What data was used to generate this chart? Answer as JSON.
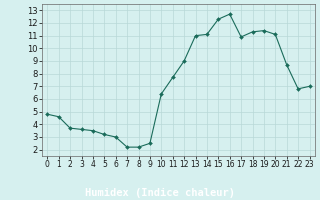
{
  "x": [
    0,
    1,
    2,
    3,
    4,
    5,
    6,
    7,
    8,
    9,
    10,
    11,
    12,
    13,
    14,
    15,
    16,
    17,
    18,
    19,
    20,
    21,
    22,
    23
  ],
  "y": [
    4.8,
    4.6,
    3.7,
    3.6,
    3.5,
    3.2,
    3.0,
    2.2,
    2.2,
    2.5,
    6.4,
    7.7,
    9.0,
    11.0,
    11.1,
    12.3,
    12.7,
    10.9,
    11.3,
    11.4,
    11.1,
    8.7,
    6.8,
    7.0
  ],
  "line_color": "#1a6b5a",
  "marker": "D",
  "marker_size": 2.0,
  "bg_color": "#d6f0ef",
  "grid_color": "#b8d8d8",
  "bottom_bar_color": "#2e8b7a",
  "xlabel": "Humidex (Indice chaleur)",
  "xlabel_fontsize": 7.5,
  "tick_fontsize": 5.5,
  "ytick_fontsize": 6,
  "xlim": [
    -0.5,
    23.5
  ],
  "ylim": [
    1.5,
    13.5
  ],
  "yticks": [
    2,
    3,
    4,
    5,
    6,
    7,
    8,
    9,
    10,
    11,
    12,
    13
  ],
  "xticks": [
    0,
    1,
    2,
    3,
    4,
    5,
    6,
    7,
    8,
    9,
    10,
    11,
    12,
    13,
    14,
    15,
    16,
    17,
    18,
    19,
    20,
    21,
    22,
    23
  ]
}
